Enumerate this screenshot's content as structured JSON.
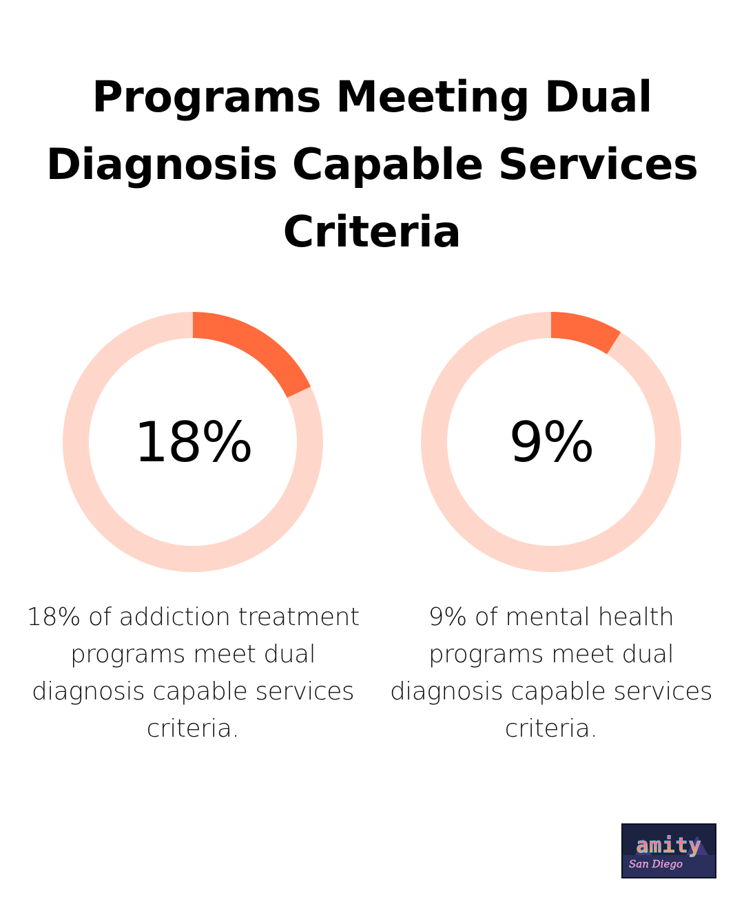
{
  "title": "Programs Meeting Dual Diagnosis Capable Services Criteria",
  "colors": {
    "accent": "#ff6b3d",
    "track": "#ffd6ca",
    "text": "#000000"
  },
  "chart_data": [
    {
      "type": "pie",
      "label": "18%",
      "values": [
        18,
        82
      ],
      "description": "18% of addiction treatment programs meet dual diagnosis capable services criteria."
    },
    {
      "type": "pie",
      "label": "9%",
      "values": [
        9,
        91
      ],
      "description": "9% of mental health programs meet dual diagnosis capable services criteria."
    }
  ],
  "logo": {
    "text": "amity",
    "subtext": "San Diego"
  }
}
